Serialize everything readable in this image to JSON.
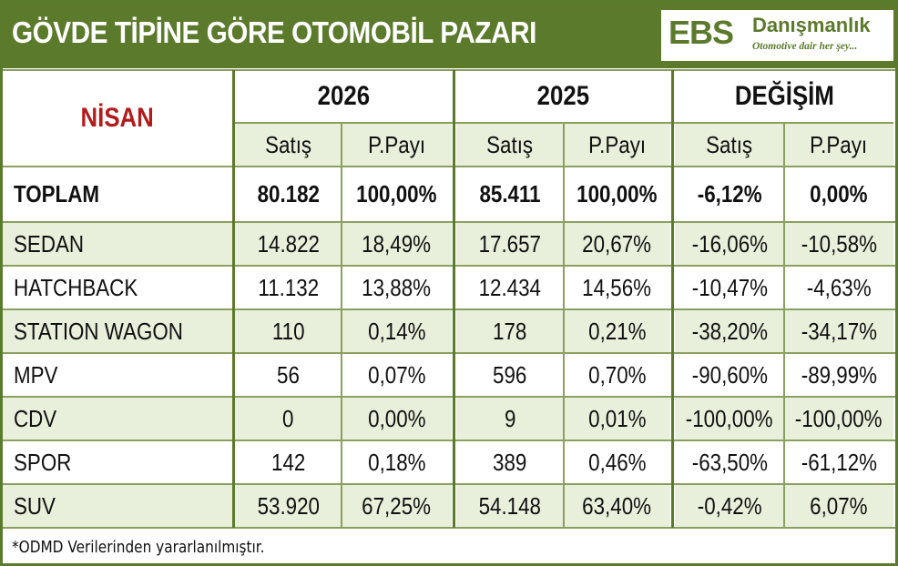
{
  "title": "GÖVDE TİPİNE GÖRE OTOMOBİL PAZARI",
  "brand": {
    "mark": "EBS",
    "name": "Danışmanlık",
    "tagline": "Otomotive dair her şey..."
  },
  "month": "NİSAN",
  "groups": [
    "2026",
    "2025",
    "DEĞİŞİM"
  ],
  "subheaders": [
    "Satış",
    "P.Payı",
    "Satış",
    "P.Payı",
    "Satış",
    "P.Payı"
  ],
  "rows": [
    {
      "label": "TOPLAM",
      "values": [
        "80.182",
        "100,00%",
        "85.411",
        "100,00%",
        "-6,12%",
        "0,00%"
      ]
    },
    {
      "label": "SEDAN",
      "values": [
        "14.822",
        "18,49%",
        "17.657",
        "20,67%",
        "-16,06%",
        "-10,58%"
      ]
    },
    {
      "label": "HATCHBACK",
      "values": [
        "11.132",
        "13,88%",
        "12.434",
        "14,56%",
        "-10,47%",
        "-4,63%"
      ]
    },
    {
      "label": "STATION WAGON",
      "values": [
        "110",
        "0,14%",
        "178",
        "0,21%",
        "-38,20%",
        "-34,17%"
      ]
    },
    {
      "label": "MPV",
      "values": [
        "56",
        "0,07%",
        "596",
        "0,70%",
        "-90,60%",
        "-89,99%"
      ]
    },
    {
      "label": "CDV",
      "values": [
        "0",
        "0,00%",
        "9",
        "0,01%",
        "-100,00%",
        "-100,00%"
      ]
    },
    {
      "label": "SPOR",
      "values": [
        "142",
        "0,18%",
        "389",
        "0,46%",
        "-63,50%",
        "-61,12%"
      ]
    },
    {
      "label": "SUV",
      "values": [
        "53.920",
        "67,25%",
        "54.148",
        "63,40%",
        "-0,42%",
        "6,07%"
      ]
    }
  ],
  "footnote": "*ODMD Verilerinden yararlanılmıştır."
}
